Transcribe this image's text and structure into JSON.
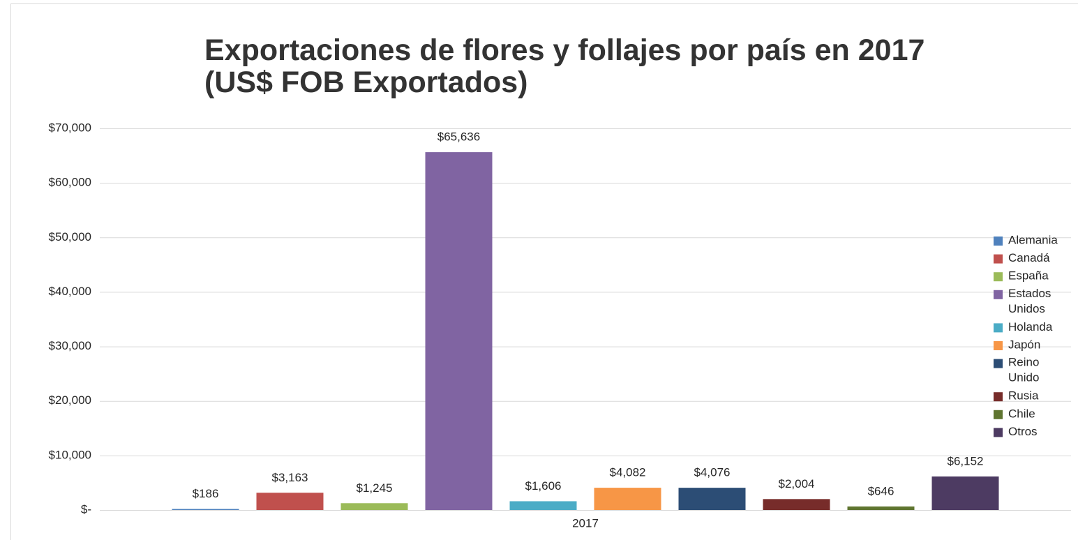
{
  "chart_data": {
    "type": "bar",
    "title": "Exportaciones de flores y follajes por país en 2017 (US$ FOB Exportados)",
    "categories": [
      "2017"
    ],
    "series": [
      {
        "name": "Alemania",
        "color": "#4f81bd",
        "values": [
          186
        ],
        "value_labels": [
          "$186"
        ]
      },
      {
        "name": "Canadá",
        "color": "#c0504d",
        "values": [
          3163
        ],
        "value_labels": [
          "$3,163"
        ]
      },
      {
        "name": "España",
        "color": "#9bbb59",
        "values": [
          1245
        ],
        "value_labels": [
          "$1,245"
        ]
      },
      {
        "name": "Estados Unidos",
        "color": "#8064a2",
        "values": [
          65636
        ],
        "value_labels": [
          "$65,636"
        ]
      },
      {
        "name": "Holanda",
        "color": "#4bacc6",
        "values": [
          1606
        ],
        "value_labels": [
          "$1,606"
        ]
      },
      {
        "name": "Japón",
        "color": "#f79646",
        "values": [
          4082
        ],
        "value_labels": [
          "$4,082"
        ]
      },
      {
        "name": "Reino Unido",
        "color": "#2c4d75",
        "values": [
          4076
        ],
        "value_labels": [
          "$4,076"
        ]
      },
      {
        "name": "Rusia",
        "color": "#772c2a",
        "values": [
          2004
        ],
        "value_labels": [
          "$2,004"
        ]
      },
      {
        "name": "Chile",
        "color": "#5f7530",
        "values": [
          646
        ],
        "value_labels": [
          "$646"
        ]
      },
      {
        "name": "Otros",
        "color": "#4d3b62",
        "values": [
          6152
        ],
        "value_labels": [
          "$6,152"
        ]
      }
    ],
    "ylim": [
      0,
      70000
    ],
    "yticks": [
      {
        "value": 0,
        "label": "$-"
      },
      {
        "value": 10000,
        "label": "$10,000"
      },
      {
        "value": 20000,
        "label": "$20,000"
      },
      {
        "value": 30000,
        "label": "$30,000"
      },
      {
        "value": 40000,
        "label": "$40,000"
      },
      {
        "value": 50000,
        "label": "$50,000"
      },
      {
        "value": 60000,
        "label": "$60,000"
      },
      {
        "value": 70000,
        "label": "$70,000"
      }
    ],
    "grid": true,
    "legend": "right"
  }
}
